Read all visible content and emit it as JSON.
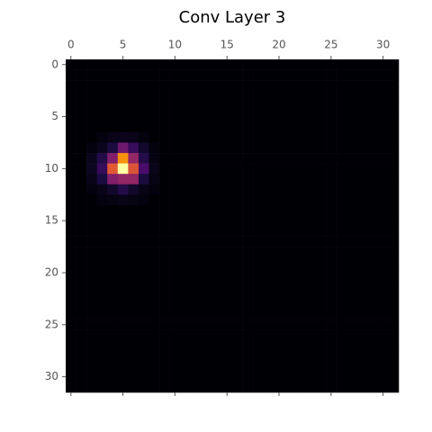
{
  "chart_data": {
    "type": "heatmap",
    "title": "Conv Layer 3",
    "cmap": "inferno",
    "xlim": [
      -0.5,
      31.5
    ],
    "ylim": [
      31.5,
      -0.5
    ],
    "xticks": [
      0,
      5,
      10,
      15,
      20,
      25,
      30
    ],
    "yticks": [
      0,
      5,
      10,
      15,
      20,
      25,
      30
    ],
    "z": [
      [
        0,
        0,
        0,
        0,
        0,
        0,
        0,
        0,
        0,
        0,
        0,
        0,
        0,
        0,
        0,
        0,
        0,
        0,
        0,
        0,
        0,
        0,
        0,
        0,
        0,
        0,
        0,
        0,
        0,
        0,
        0,
        0
      ],
      [
        0,
        0,
        0,
        0,
        0,
        0,
        0,
        0,
        0,
        0,
        0,
        0,
        0,
        0,
        0,
        0,
        0,
        0,
        0,
        0,
        0,
        0,
        0,
        0,
        0,
        0,
        0,
        0,
        0,
        0,
        0,
        0
      ],
      [
        0,
        0,
        0,
        0,
        0,
        0,
        0,
        0,
        0,
        0,
        0,
        0,
        0,
        0,
        0,
        0,
        0,
        0,
        0,
        0,
        0,
        0,
        0,
        0,
        0,
        0,
        0,
        0,
        0,
        0,
        0,
        0
      ],
      [
        0,
        0,
        0,
        0,
        0,
        0,
        0,
        0,
        0,
        0,
        0,
        0,
        0,
        0,
        0,
        0,
        0,
        0,
        0,
        0,
        0,
        0,
        0,
        0,
        0,
        0,
        0,
        0,
        0,
        0,
        0,
        0
      ],
      [
        0,
        0,
        0,
        0,
        0,
        0,
        0,
        0,
        0,
        0,
        0,
        0,
        0,
        0,
        0,
        0,
        0,
        0,
        0,
        0,
        0,
        0,
        0,
        0,
        0,
        0,
        0,
        0,
        0,
        0,
        0,
        0
      ],
      [
        0,
        0,
        0,
        0,
        0,
        0,
        0,
        0,
        0,
        0,
        0,
        0,
        0,
        0,
        0,
        0,
        0,
        0,
        0,
        0,
        0,
        0,
        0,
        0,
        0,
        0,
        0,
        0,
        0,
        0,
        0,
        0
      ],
      [
        0,
        0,
        0,
        0,
        0,
        0,
        0,
        0,
        0,
        0,
        0,
        0,
        0,
        0,
        0,
        0,
        0,
        0,
        0,
        0,
        0,
        0,
        0,
        0,
        0,
        0,
        0,
        0,
        0,
        0,
        0,
        0
      ],
      [
        0,
        0,
        0,
        0.02,
        0.04,
        0.05,
        0.04,
        0.02,
        0,
        0,
        0,
        0,
        0,
        0,
        0,
        0,
        0,
        0,
        0,
        0,
        0,
        0,
        0,
        0,
        0,
        0,
        0,
        0,
        0,
        0,
        0,
        0
      ],
      [
        0,
        0,
        0.02,
        0.05,
        0.12,
        0.35,
        0.2,
        0.08,
        0.02,
        0,
        0,
        0,
        0,
        0,
        0,
        0,
        0,
        0,
        0,
        0,
        0,
        0,
        0,
        0,
        0,
        0,
        0,
        0,
        0,
        0,
        0,
        0
      ],
      [
        0,
        0,
        0.05,
        0.15,
        0.4,
        0.85,
        0.45,
        0.15,
        0.03,
        0,
        0,
        0,
        0,
        0,
        0,
        0,
        0,
        0,
        0,
        0,
        0,
        0,
        0,
        0,
        0,
        0,
        0,
        0,
        0,
        0,
        0,
        0
      ],
      [
        0,
        0,
        0.06,
        0.2,
        0.7,
        1,
        0.68,
        0.25,
        0.04,
        0,
        0,
        0,
        0,
        0,
        0,
        0,
        0,
        0,
        0,
        0,
        0,
        0,
        0,
        0,
        0,
        0,
        0,
        0,
        0,
        0,
        0,
        0
      ],
      [
        0,
        0,
        0.04,
        0.12,
        0.4,
        0.45,
        0.45,
        0.12,
        0.03,
        0,
        0,
        0,
        0,
        0,
        0,
        0,
        0,
        0,
        0,
        0,
        0,
        0,
        0,
        0,
        0,
        0,
        0,
        0,
        0,
        0,
        0,
        0
      ],
      [
        0,
        0,
        0.02,
        0.04,
        0.08,
        0.15,
        0.08,
        0.04,
        0.02,
        0,
        0,
        0,
        0,
        0,
        0,
        0,
        0,
        0,
        0,
        0,
        0,
        0,
        0,
        0,
        0,
        0,
        0,
        0,
        0,
        0,
        0,
        0
      ],
      [
        0,
        0,
        0,
        0.02,
        0.03,
        0.04,
        0.03,
        0.02,
        0,
        0,
        0,
        0,
        0,
        0,
        0,
        0,
        0,
        0,
        0,
        0,
        0,
        0,
        0,
        0,
        0,
        0,
        0,
        0,
        0,
        0,
        0,
        0
      ],
      [
        0,
        0,
        0,
        0,
        0,
        0,
        0,
        0,
        0,
        0,
        0,
        0,
        0,
        0,
        0,
        0,
        0,
        0,
        0,
        0,
        0,
        0,
        0,
        0,
        0,
        0,
        0,
        0,
        0,
        0,
        0,
        0
      ],
      [
        0,
        0,
        0,
        0,
        0,
        0,
        0,
        0,
        0,
        0,
        0,
        0,
        0,
        0,
        0,
        0,
        0,
        0,
        0,
        0,
        0,
        0,
        0,
        0,
        0,
        0,
        0,
        0,
        0,
        0,
        0,
        0
      ],
      [
        0,
        0,
        0,
        0,
        0,
        0,
        0,
        0,
        0,
        0,
        0,
        0,
        0,
        0,
        0,
        0,
        0,
        0,
        0,
        0,
        0,
        0,
        0,
        0,
        0,
        0,
        0,
        0,
        0,
        0,
        0,
        0
      ],
      [
        0,
        0,
        0,
        0,
        0,
        0,
        0,
        0,
        0,
        0,
        0,
        0,
        0,
        0,
        0,
        0,
        0,
        0,
        0,
        0,
        0,
        0,
        0,
        0,
        0,
        0,
        0,
        0,
        0,
        0,
        0,
        0
      ],
      [
        0,
        0,
        0,
        0,
        0,
        0,
        0,
        0,
        0,
        0,
        0,
        0,
        0,
        0,
        0,
        0,
        0,
        0,
        0,
        0,
        0,
        0,
        0,
        0,
        0,
        0,
        0,
        0,
        0,
        0,
        0,
        0
      ],
      [
        0,
        0,
        0,
        0,
        0,
        0,
        0,
        0,
        0,
        0,
        0,
        0,
        0,
        0,
        0,
        0,
        0,
        0,
        0,
        0,
        0,
        0,
        0,
        0,
        0,
        0,
        0,
        0,
        0,
        0,
        0,
        0
      ],
      [
        0,
        0,
        0,
        0,
        0,
        0,
        0,
        0,
        0,
        0,
        0,
        0,
        0,
        0,
        0,
        0,
        0,
        0,
        0,
        0,
        0,
        0,
        0,
        0,
        0,
        0,
        0,
        0,
        0,
        0,
        0,
        0
      ],
      [
        0,
        0,
        0,
        0,
        0,
        0,
        0,
        0,
        0,
        0,
        0,
        0,
        0,
        0,
        0,
        0,
        0,
        0,
        0,
        0,
        0,
        0,
        0,
        0,
        0,
        0,
        0,
        0,
        0,
        0,
        0,
        0
      ],
      [
        0,
        0,
        0,
        0,
        0,
        0,
        0,
        0,
        0,
        0,
        0,
        0,
        0,
        0,
        0,
        0,
        0,
        0,
        0,
        0,
        0,
        0,
        0,
        0,
        0,
        0,
        0,
        0,
        0,
        0,
        0,
        0
      ],
      [
        0,
        0,
        0,
        0,
        0,
        0,
        0,
        0,
        0,
        0,
        0,
        0,
        0,
        0,
        0,
        0,
        0,
        0,
        0,
        0,
        0,
        0,
        0,
        0,
        0,
        0,
        0,
        0,
        0,
        0,
        0,
        0
      ],
      [
        0,
        0,
        0,
        0,
        0,
        0,
        0,
        0,
        0,
        0,
        0,
        0,
        0,
        0,
        0,
        0,
        0,
        0,
        0,
        0,
        0,
        0,
        0,
        0,
        0,
        0,
        0,
        0,
        0,
        0,
        0,
        0
      ],
      [
        0,
        0,
        0,
        0,
        0,
        0,
        0,
        0,
        0,
        0,
        0,
        0,
        0,
        0,
        0,
        0,
        0,
        0,
        0,
        0,
        0,
        0,
        0,
        0,
        0,
        0,
        0,
        0,
        0,
        0,
        0,
        0
      ],
      [
        0,
        0,
        0,
        0,
        0,
        0,
        0,
        0,
        0,
        0,
        0,
        0,
        0,
        0,
        0,
        0,
        0,
        0,
        0,
        0,
        0,
        0,
        0,
        0,
        0,
        0,
        0,
        0,
        0,
        0,
        0,
        0
      ],
      [
        0,
        0,
        0,
        0,
        0,
        0,
        0,
        0,
        0,
        0,
        0,
        0,
        0,
        0,
        0,
        0,
        0,
        0,
        0,
        0,
        0,
        0,
        0,
        0,
        0,
        0,
        0,
        0,
        0,
        0,
        0,
        0
      ],
      [
        0,
        0,
        0,
        0,
        0,
        0,
        0,
        0,
        0,
        0,
        0,
        0,
        0,
        0,
        0,
        0,
        0,
        0,
        0,
        0,
        0,
        0,
        0,
        0,
        0,
        0,
        0,
        0,
        0,
        0,
        0,
        0
      ],
      [
        0,
        0,
        0,
        0,
        0,
        0,
        0,
        0,
        0,
        0,
        0,
        0,
        0,
        0,
        0,
        0,
        0,
        0,
        0,
        0,
        0,
        0,
        0,
        0,
        0,
        0,
        0,
        0,
        0,
        0,
        0,
        0
      ],
      [
        0,
        0,
        0,
        0,
        0,
        0,
        0,
        0,
        0,
        0,
        0,
        0,
        0,
        0,
        0,
        0,
        0,
        0,
        0,
        0,
        0,
        0,
        0,
        0,
        0,
        0,
        0,
        0,
        0,
        0,
        0,
        0
      ],
      [
        0,
        0,
        0,
        0,
        0,
        0,
        0,
        0,
        0,
        0,
        0,
        0,
        0,
        0,
        0,
        0,
        0,
        0,
        0,
        0,
        0,
        0,
        0,
        0,
        0,
        0,
        0,
        0,
        0,
        0,
        0,
        0
      ]
    ]
  }
}
